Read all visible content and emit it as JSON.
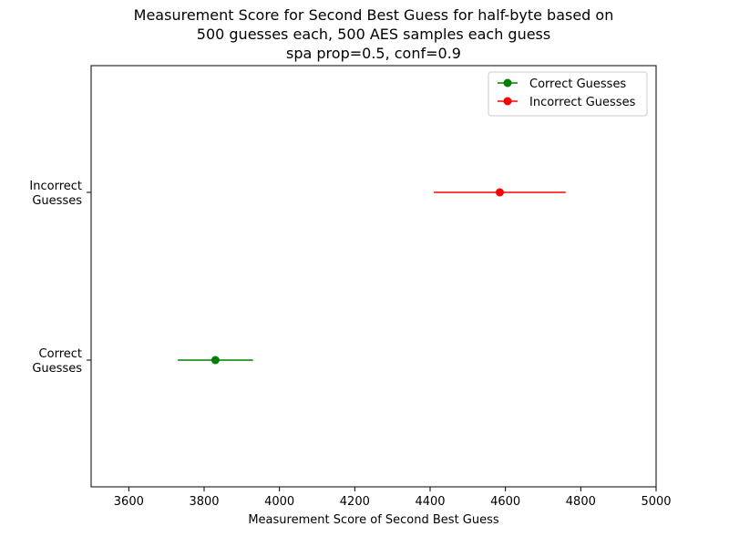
{
  "chart_data": {
    "type": "scatter",
    "orientation": "horizontal-errorbar",
    "title_lines": [
      "Measurement Score for Second Best Guess for half-byte based on",
      "500 guesses each, 500 AES samples each guess",
      "spa prop=0.5, conf=0.9"
    ],
    "xlabel": "Measurement Score of Second Best Guess",
    "ylabel": "",
    "xlim": [
      3500,
      5000
    ],
    "x_ticks": [
      "3600",
      "3800",
      "4000",
      "4200",
      "4400",
      "4600",
      "4800",
      "5000"
    ],
    "categories": [
      {
        "lines": [
          "Correct",
          "Guesses"
        ]
      },
      {
        "lines": [
          "Incorrect",
          "Guesses"
        ]
      }
    ],
    "series": [
      {
        "name": "Correct Guesses",
        "color": "#008000",
        "category_index": 0,
        "value": 3830,
        "err_low": 3730,
        "err_high": 3930
      },
      {
        "name": "Incorrect Guesses",
        "color": "#ff0000",
        "category_index": 1,
        "value": 4585,
        "err_low": 4410,
        "err_high": 4760
      }
    ],
    "legend": {
      "placement": "upper-right",
      "entries": [
        "Correct Guesses",
        "Incorrect Guesses"
      ]
    },
    "grid": false
  }
}
